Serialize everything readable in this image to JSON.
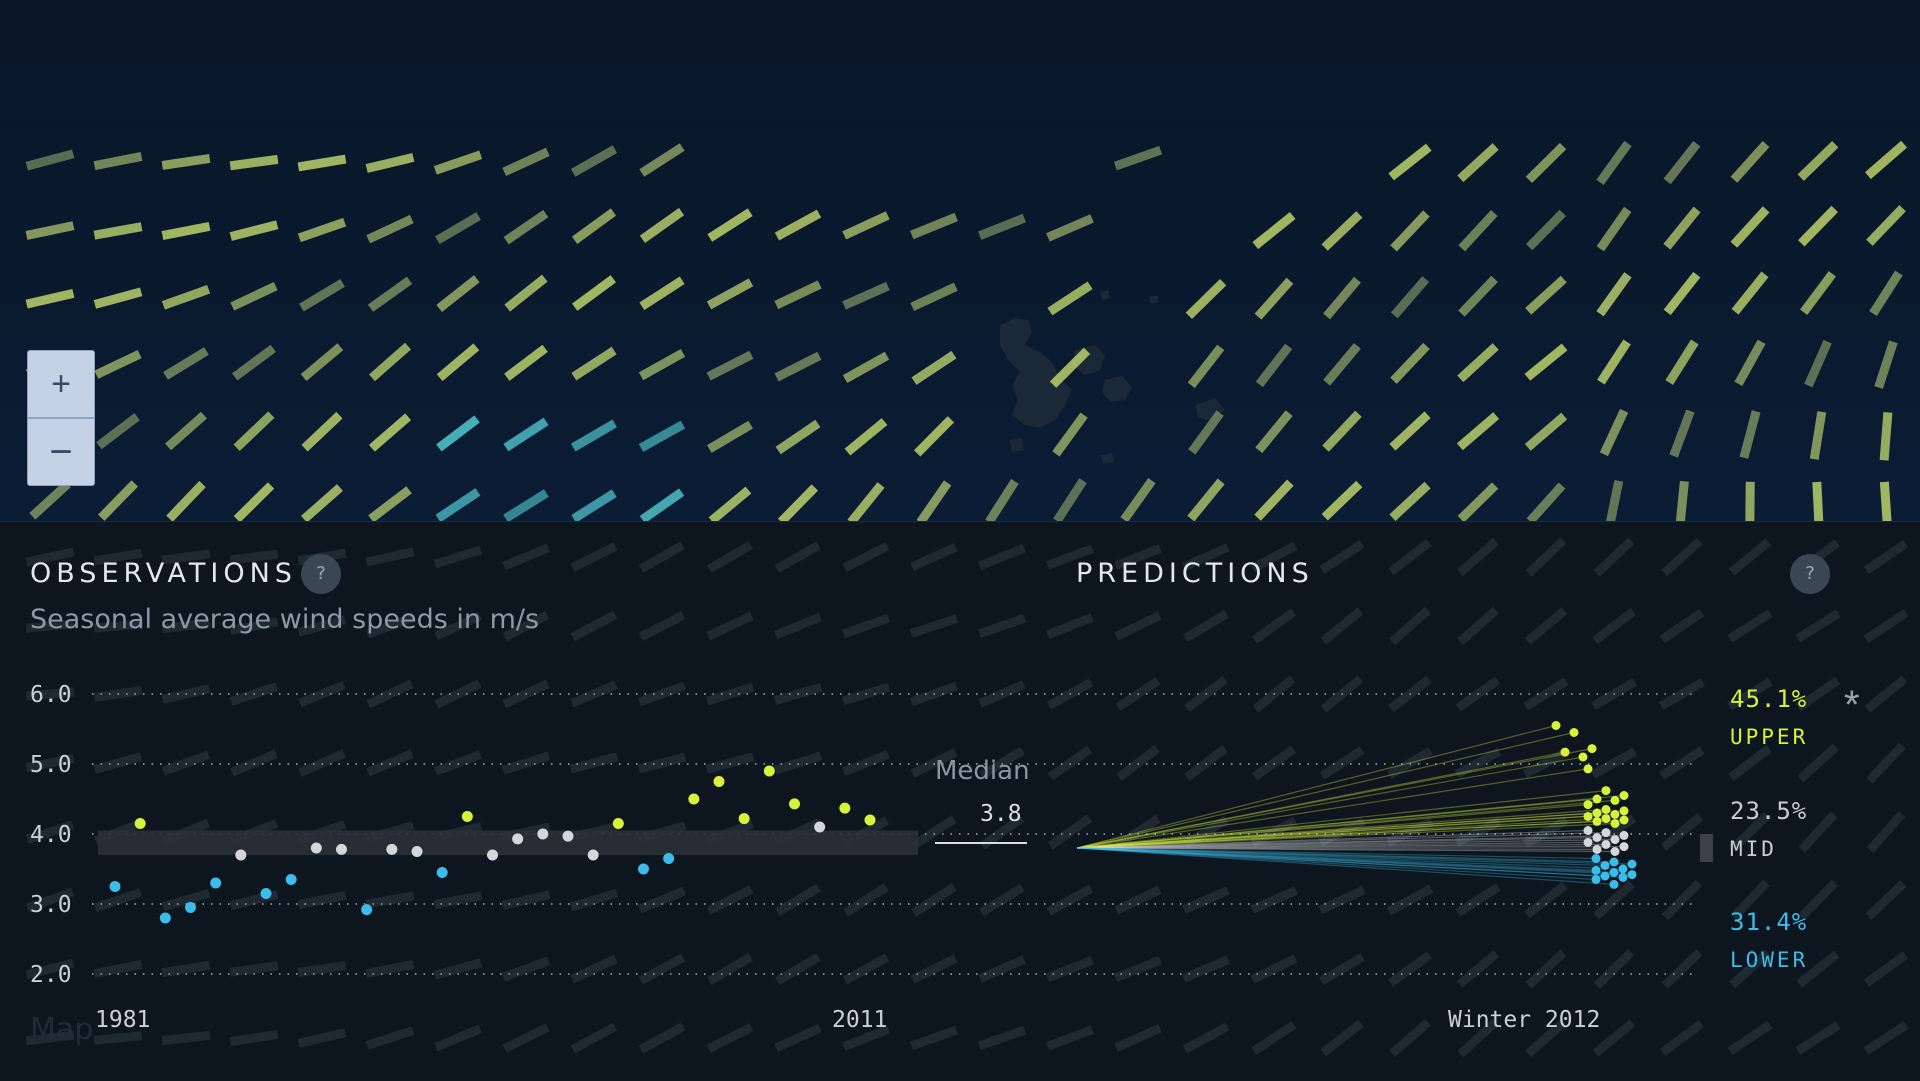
{
  "map": {
    "zoom_in_label": "+",
    "zoom_out_label": "−"
  },
  "observations": {
    "title": "OBSERVATIONS",
    "help_label": "?",
    "subtitle": "Seasonal average wind speeds in m/s",
    "median_label": "Median",
    "median_value": "3.8",
    "credit": "Map"
  },
  "predictions": {
    "title": "PREDICTIONS",
    "help_label": "?",
    "star_label": "*",
    "upper": {
      "percent": "45.1%",
      "label": "UPPER"
    },
    "mid": {
      "percent": "23.5%",
      "label": "MID"
    },
    "lower": {
      "percent": "31.4%",
      "label": "LOWER"
    }
  },
  "colors": {
    "upper": "#d7f23a",
    "mid": "#d4d7d9",
    "lower": "#3cbde9",
    "grid": "#7c8793"
  },
  "chart_data": {
    "type": "scatter",
    "title": "OBSERVATIONS",
    "subtitle": "Seasonal average wind speeds in m/s",
    "ylim": [
      2.0,
      6.0
    ],
    "y_ticks": [
      "6.0",
      "5.0",
      "4.0",
      "3.0",
      "2.0"
    ],
    "y_tick_values": [
      6.0,
      5.0,
      4.0,
      3.0,
      2.0
    ],
    "x_tick_labels": [
      "1981",
      "2011",
      "Winter 2012"
    ],
    "median": 3.8,
    "mid_band": [
      3.7,
      4.05
    ],
    "observations": [
      {
        "year": 1981,
        "value": 3.25,
        "class": "lower"
      },
      {
        "year": 1982,
        "value": 4.15,
        "class": "upper"
      },
      {
        "year": 1983,
        "value": 2.8,
        "class": "lower"
      },
      {
        "year": 1984,
        "value": 2.95,
        "class": "lower"
      },
      {
        "year": 1985,
        "value": 3.3,
        "class": "lower"
      },
      {
        "year": 1986,
        "value": 3.7,
        "class": "mid"
      },
      {
        "year": 1987,
        "value": 3.15,
        "class": "lower"
      },
      {
        "year": 1988,
        "value": 3.35,
        "class": "lower"
      },
      {
        "year": 1989,
        "value": 3.8,
        "class": "mid"
      },
      {
        "year": 1990,
        "value": 3.78,
        "class": "mid"
      },
      {
        "year": 1991,
        "value": 2.92,
        "class": "lower"
      },
      {
        "year": 1992,
        "value": 3.78,
        "class": "mid"
      },
      {
        "year": 1993,
        "value": 3.75,
        "class": "mid"
      },
      {
        "year": 1994,
        "value": 3.45,
        "class": "lower"
      },
      {
        "year": 1995,
        "value": 4.25,
        "class": "upper"
      },
      {
        "year": 1996,
        "value": 3.7,
        "class": "mid"
      },
      {
        "year": 1997,
        "value": 3.93,
        "class": "mid"
      },
      {
        "year": 1998,
        "value": 4.0,
        "class": "mid"
      },
      {
        "year": 1999,
        "value": 3.97,
        "class": "mid"
      },
      {
        "year": 2000,
        "value": 3.7,
        "class": "mid"
      },
      {
        "year": 2001,
        "value": 4.15,
        "class": "upper"
      },
      {
        "year": 2002,
        "value": 3.5,
        "class": "lower"
      },
      {
        "year": 2003,
        "value": 3.65,
        "class": "lower"
      },
      {
        "year": 2004,
        "value": 4.5,
        "class": "upper"
      },
      {
        "year": 2005,
        "value": 4.75,
        "class": "upper"
      },
      {
        "year": 2006,
        "value": 4.22,
        "class": "upper"
      },
      {
        "year": 2007,
        "value": 4.9,
        "class": "upper"
      },
      {
        "year": 2008,
        "value": 4.43,
        "class": "upper"
      },
      {
        "year": 2009,
        "value": 4.1,
        "class": "mid"
      },
      {
        "year": 2010,
        "value": 4.37,
        "class": "upper"
      },
      {
        "year": 2011,
        "value": 4.2,
        "class": "upper"
      }
    ],
    "prediction_start": 3.8,
    "predictions": [
      {
        "value": 5.55,
        "class": "upper"
      },
      {
        "value": 5.45,
        "class": "upper"
      },
      {
        "value": 5.22,
        "class": "upper"
      },
      {
        "value": 5.17,
        "class": "upper"
      },
      {
        "value": 5.1,
        "class": "upper"
      },
      {
        "value": 4.93,
        "class": "upper"
      },
      {
        "value": 4.62,
        "class": "upper"
      },
      {
        "value": 4.55,
        "class": "upper"
      },
      {
        "value": 4.5,
        "class": "upper"
      },
      {
        "value": 4.48,
        "class": "upper"
      },
      {
        "value": 4.42,
        "class": "upper"
      },
      {
        "value": 4.35,
        "class": "upper"
      },
      {
        "value": 4.33,
        "class": "upper"
      },
      {
        "value": 4.3,
        "class": "upper"
      },
      {
        "value": 4.28,
        "class": "upper"
      },
      {
        "value": 4.25,
        "class": "upper"
      },
      {
        "value": 4.22,
        "class": "upper"
      },
      {
        "value": 4.2,
        "class": "upper"
      },
      {
        "value": 4.18,
        "class": "upper"
      },
      {
        "value": 4.15,
        "class": "upper"
      },
      {
        "value": 4.05,
        "class": "mid"
      },
      {
        "value": 4.02,
        "class": "mid"
      },
      {
        "value": 3.98,
        "class": "mid"
      },
      {
        "value": 3.95,
        "class": "mid"
      },
      {
        "value": 3.92,
        "class": "mid"
      },
      {
        "value": 3.88,
        "class": "mid"
      },
      {
        "value": 3.85,
        "class": "mid"
      },
      {
        "value": 3.82,
        "class": "mid"
      },
      {
        "value": 3.78,
        "class": "mid"
      },
      {
        "value": 3.75,
        "class": "mid"
      },
      {
        "value": 3.65,
        "class": "lower"
      },
      {
        "value": 3.6,
        "class": "lower"
      },
      {
        "value": 3.57,
        "class": "lower"
      },
      {
        "value": 3.55,
        "class": "lower"
      },
      {
        "value": 3.5,
        "class": "lower"
      },
      {
        "value": 3.48,
        "class": "lower"
      },
      {
        "value": 3.45,
        "class": "lower"
      },
      {
        "value": 3.42,
        "class": "lower"
      },
      {
        "value": 3.4,
        "class": "lower"
      },
      {
        "value": 3.38,
        "class": "lower"
      },
      {
        "value": 3.35,
        "class": "lower"
      },
      {
        "value": 3.28,
        "class": "lower"
      }
    ],
    "prediction_shares": {
      "upper": 45.1,
      "mid": 23.5,
      "lower": 31.4
    }
  }
}
